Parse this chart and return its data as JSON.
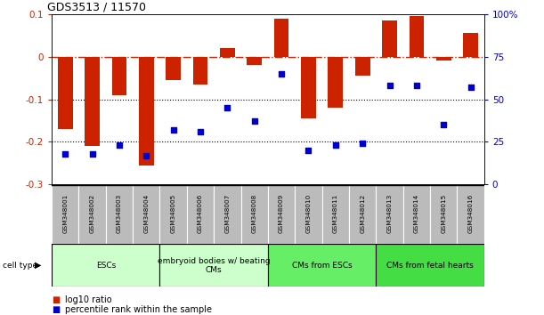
{
  "title": "GDS3513 / 11570",
  "samples": [
    "GSM348001",
    "GSM348002",
    "GSM348003",
    "GSM348004",
    "GSM348005",
    "GSM348006",
    "GSM348007",
    "GSM348008",
    "GSM348009",
    "GSM348010",
    "GSM348011",
    "GSM348012",
    "GSM348013",
    "GSM348014",
    "GSM348015",
    "GSM348016"
  ],
  "log10_ratio": [
    -0.17,
    -0.21,
    -0.09,
    -0.255,
    -0.055,
    -0.065,
    0.02,
    -0.02,
    0.09,
    -0.145,
    -0.12,
    -0.045,
    0.085,
    0.095,
    -0.01,
    0.055
  ],
  "percentile_rank": [
    18,
    18,
    23,
    17,
    32,
    31,
    45,
    37,
    65,
    20,
    23,
    24,
    58,
    58,
    35,
    57
  ],
  "ylim_left": [
    -0.3,
    0.1
  ],
  "ylim_right": [
    0,
    100
  ],
  "cell_type_groups": [
    {
      "label": "ESCs",
      "start": 0,
      "end": 3,
      "color": "#ccffcc"
    },
    {
      "label": "embryoid bodies w/ beating\nCMs",
      "start": 4,
      "end": 7,
      "color": "#ccffcc"
    },
    {
      "label": "CMs from ESCs",
      "start": 8,
      "end": 11,
      "color": "#66ee66"
    },
    {
      "label": "CMs from fetal hearts",
      "start": 12,
      "end": 15,
      "color": "#44dd44"
    }
  ],
  "bar_color": "#cc2200",
  "dot_color": "#0000cc",
  "hline_color": "#cc2200",
  "grid_color": "black",
  "bg_color": "#ffffff",
  "sample_box_color": "#bbbbbb",
  "cell_type_label": "cell type",
  "legend_ratio_label": "log10 ratio",
  "legend_pct_label": "percentile rank within the sample"
}
